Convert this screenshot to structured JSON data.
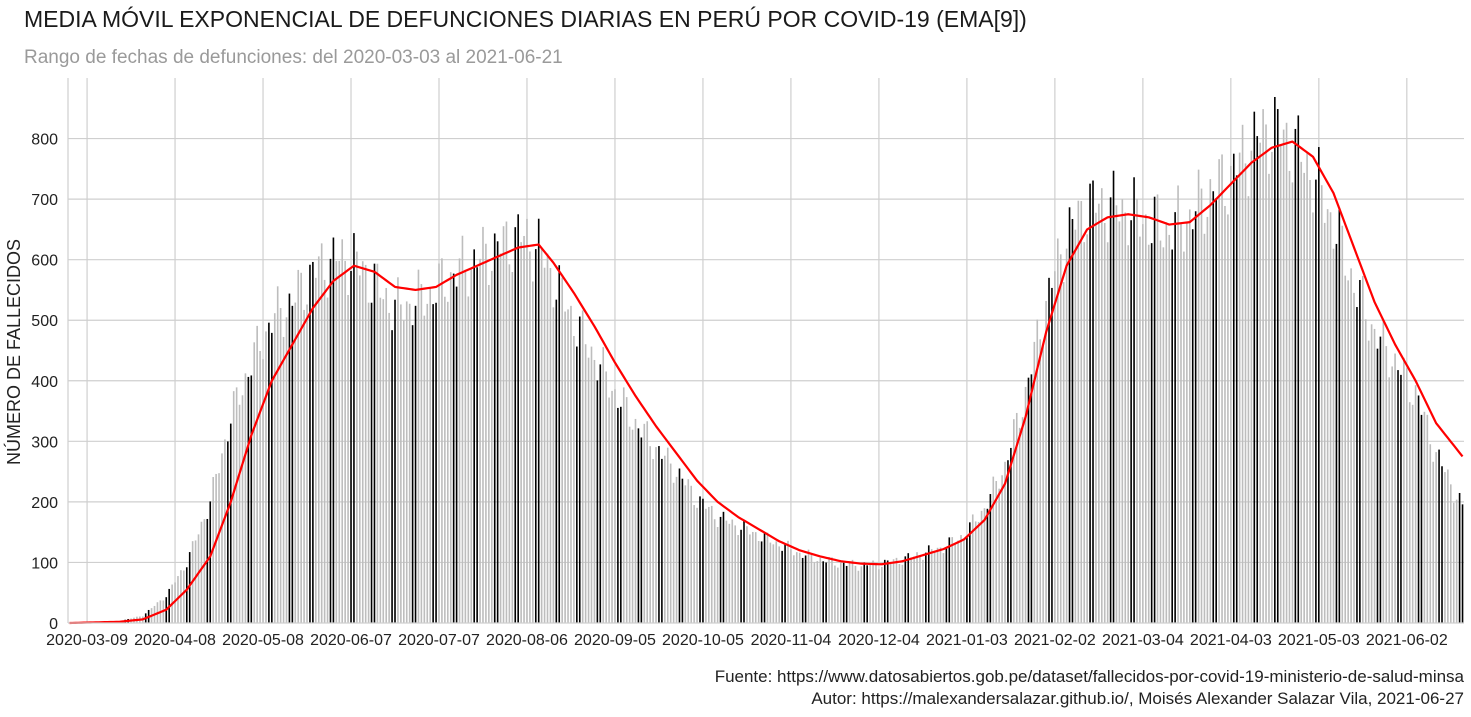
{
  "chart_data": {
    "type": "bar",
    "title": "MEDIA MÓVIL EXPONENCIAL DE DEFUNCIONES DIARIAS EN PERÚ POR COVID-19 (EMA[9])",
    "subtitle": "Rango de fechas de defunciones: del 2020-03-03 al 2021-06-21",
    "xlabel": "",
    "ylabel": "NÚMERO DE FALLECIDOS",
    "date_range": [
      "2020-03-03",
      "2021-06-21"
    ],
    "ylim": [
      0,
      900
    ],
    "yticks": [
      0,
      100,
      200,
      300,
      400,
      500,
      600,
      700,
      800
    ],
    "xtick_labels": [
      "2020-03-09",
      "2020-04-08",
      "2020-05-08",
      "2020-06-07",
      "2020-07-07",
      "2020-08-06",
      "2020-09-05",
      "2020-10-05",
      "2020-11-04",
      "2020-12-04",
      "2021-01-03",
      "2021-02-02",
      "2021-03-04",
      "2021-04-03",
      "2021-05-03",
      "2021-06-02"
    ],
    "grid": true,
    "series": [
      {
        "kind": "bars",
        "color_weekday": "#bdbdbd",
        "color_highlight": "#000000",
        "daily_anchors": [
          [
            "2020-03-03",
            0
          ],
          [
            "2020-03-20",
            3
          ],
          [
            "2020-03-28",
            12
          ],
          [
            "2020-04-05",
            45
          ],
          [
            "2020-04-12",
            100
          ],
          [
            "2020-04-20",
            200
          ],
          [
            "2020-04-27",
            340
          ],
          [
            "2020-05-04",
            430
          ],
          [
            "2020-05-11",
            500
          ],
          [
            "2020-05-18",
            530
          ],
          [
            "2020-05-25",
            580
          ],
          [
            "2020-06-01",
            600
          ],
          [
            "2020-06-08",
            600
          ],
          [
            "2020-06-15",
            560
          ],
          [
            "2020-06-22",
            520
          ],
          [
            "2020-06-29",
            530
          ],
          [
            "2020-07-06",
            550
          ],
          [
            "2020-07-13",
            580
          ],
          [
            "2020-07-20",
            600
          ],
          [
            "2020-07-27",
            620
          ],
          [
            "2020-08-03",
            640
          ],
          [
            "2020-08-10",
            620
          ],
          [
            "2020-08-15",
            570
          ],
          [
            "2020-08-22",
            500
          ],
          [
            "2020-08-29",
            440
          ],
          [
            "2020-09-05",
            380
          ],
          [
            "2020-09-12",
            330
          ],
          [
            "2020-09-19",
            290
          ],
          [
            "2020-09-26",
            250
          ],
          [
            "2020-10-03",
            205
          ],
          [
            "2020-10-10",
            175
          ],
          [
            "2020-10-17",
            160
          ],
          [
            "2020-10-24",
            145
          ],
          [
            "2020-10-31",
            130
          ],
          [
            "2020-11-07",
            115
          ],
          [
            "2020-11-14",
            105
          ],
          [
            "2020-11-21",
            98
          ],
          [
            "2020-11-28",
            95
          ],
          [
            "2020-12-05",
            98
          ],
          [
            "2020-12-12",
            105
          ],
          [
            "2020-12-19",
            115
          ],
          [
            "2020-12-26",
            125
          ],
          [
            "2021-01-02",
            145
          ],
          [
            "2021-01-09",
            190
          ],
          [
            "2021-01-16",
            260
          ],
          [
            "2021-01-23",
            380
          ],
          [
            "2021-01-30",
            530
          ],
          [
            "2021-02-06",
            640
          ],
          [
            "2021-02-13",
            690
          ],
          [
            "2021-02-20",
            690
          ],
          [
            "2021-02-27",
            680
          ],
          [
            "2021-03-06",
            660
          ],
          [
            "2021-03-13",
            650
          ],
          [
            "2021-03-20",
            670
          ],
          [
            "2021-03-27",
            710
          ],
          [
            "2021-04-03",
            740
          ],
          [
            "2021-04-10",
            790
          ],
          [
            "2021-04-17",
            820
          ],
          [
            "2021-04-24",
            790
          ],
          [
            "2021-05-01",
            740
          ],
          [
            "2021-05-08",
            660
          ],
          [
            "2021-05-15",
            560
          ],
          [
            "2021-05-22",
            480
          ],
          [
            "2021-05-29",
            430
          ],
          [
            "2021-06-05",
            380
          ],
          [
            "2021-06-12",
            280
          ],
          [
            "2021-06-21",
            190
          ]
        ]
      },
      {
        "kind": "line",
        "color": "#ff0000",
        "ema_points": [
          [
            "2020-03-03",
            0
          ],
          [
            "2020-03-20",
            2
          ],
          [
            "2020-03-28",
            6
          ],
          [
            "2020-04-05",
            22
          ],
          [
            "2020-04-12",
            55
          ],
          [
            "2020-04-20",
            110
          ],
          [
            "2020-04-27",
            200
          ],
          [
            "2020-05-04",
            310
          ],
          [
            "2020-05-11",
            400
          ],
          [
            "2020-05-18",
            460
          ],
          [
            "2020-05-25",
            520
          ],
          [
            "2020-06-01",
            565
          ],
          [
            "2020-06-08",
            590
          ],
          [
            "2020-06-15",
            580
          ],
          [
            "2020-06-22",
            555
          ],
          [
            "2020-06-29",
            550
          ],
          [
            "2020-07-06",
            555
          ],
          [
            "2020-07-13",
            575
          ],
          [
            "2020-07-20",
            590
          ],
          [
            "2020-07-27",
            605
          ],
          [
            "2020-08-03",
            620
          ],
          [
            "2020-08-10",
            625
          ],
          [
            "2020-08-15",
            595
          ],
          [
            "2020-08-22",
            545
          ],
          [
            "2020-08-29",
            490
          ],
          [
            "2020-09-05",
            430
          ],
          [
            "2020-09-12",
            375
          ],
          [
            "2020-09-19",
            325
          ],
          [
            "2020-09-26",
            280
          ],
          [
            "2020-10-03",
            235
          ],
          [
            "2020-10-10",
            200
          ],
          [
            "2020-10-17",
            175
          ],
          [
            "2020-10-24",
            155
          ],
          [
            "2020-10-31",
            135
          ],
          [
            "2020-11-07",
            120
          ],
          [
            "2020-11-14",
            110
          ],
          [
            "2020-11-21",
            102
          ],
          [
            "2020-11-28",
            98
          ],
          [
            "2020-12-05",
            97
          ],
          [
            "2020-12-12",
            102
          ],
          [
            "2020-12-19",
            112
          ],
          [
            "2020-12-26",
            122
          ],
          [
            "2021-01-02",
            138
          ],
          [
            "2021-01-09",
            170
          ],
          [
            "2021-01-16",
            230
          ],
          [
            "2021-01-23",
            340
          ],
          [
            "2021-01-30",
            480
          ],
          [
            "2021-02-06",
            590
          ],
          [
            "2021-02-13",
            650
          ],
          [
            "2021-02-20",
            670
          ],
          [
            "2021-02-27",
            675
          ],
          [
            "2021-03-06",
            670
          ],
          [
            "2021-03-13",
            658
          ],
          [
            "2021-03-20",
            662
          ],
          [
            "2021-03-27",
            690
          ],
          [
            "2021-04-03",
            725
          ],
          [
            "2021-04-10",
            760
          ],
          [
            "2021-04-17",
            785
          ],
          [
            "2021-04-24",
            795
          ],
          [
            "2021-05-01",
            770
          ],
          [
            "2021-05-08",
            710
          ],
          [
            "2021-05-15",
            620
          ],
          [
            "2021-05-22",
            530
          ],
          [
            "2021-05-29",
            460
          ],
          [
            "2021-06-05",
            400
          ],
          [
            "2021-06-12",
            330
          ],
          [
            "2021-06-21",
            275
          ]
        ]
      }
    ]
  },
  "footer": {
    "source": "Fuente: https://www.datosabiertos.gob.pe/dataset/fallecidos-por-covid-19-ministerio-de-salud-minsa",
    "author": "Autor: https://malexandersalazar.github.io/, Moisés Alexander Salazar Vila, 2021-06-27"
  }
}
